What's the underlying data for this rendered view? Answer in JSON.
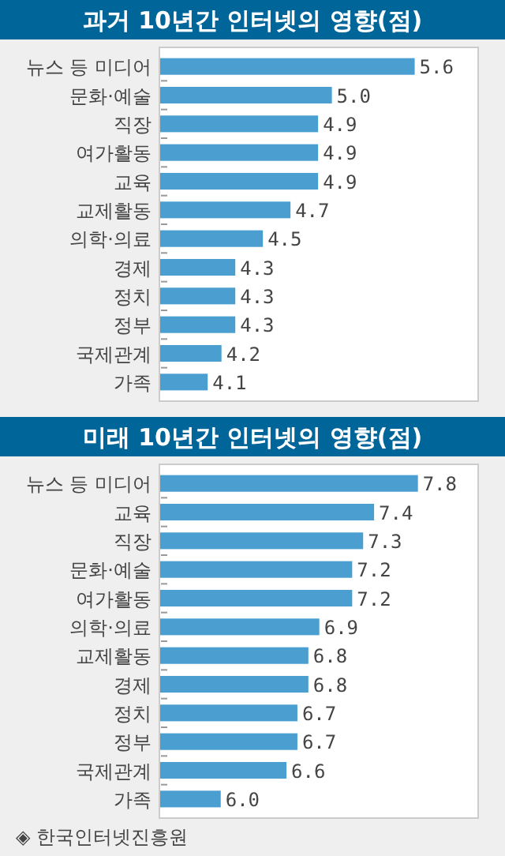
{
  "chart_data": [
    {
      "type": "bar",
      "orientation": "horizontal",
      "title": "과거 10년간 인터넷의 영향(점)",
      "categories": [
        "뉴스 등 미디어",
        "문화·예술",
        "직장",
        "여가활동",
        "교육",
        "교제활동",
        "의학·의료",
        "경제",
        "정치",
        "정부",
        "국제관계",
        "가족"
      ],
      "values": [
        5.6,
        5.0,
        4.9,
        4.9,
        4.9,
        4.7,
        4.5,
        4.3,
        4.3,
        4.3,
        4.2,
        4.1
      ],
      "color": "#4a9fd0",
      "xlim": [
        3.75,
        6.06
      ],
      "value_labels": [
        "5.6",
        "5.0",
        "4.9",
        "4.9",
        "4.9",
        "4.7",
        "4.5",
        "4.3",
        "4.3",
        "4.3",
        "4.2",
        "4.1"
      ],
      "tick_labels": "y"
    },
    {
      "type": "bar",
      "orientation": "horizontal",
      "title": "미래 10년간 인터넷의 영향(점)",
      "categories": [
        "뉴스 등 미디어",
        "교육",
        "직장",
        "문화·예술",
        "여가활동",
        "의학·의료",
        "교제활동",
        "경제",
        "정치",
        "정부",
        "국제관계",
        "가족"
      ],
      "values": [
        7.8,
        7.4,
        7.3,
        7.2,
        7.2,
        6.9,
        6.8,
        6.8,
        6.7,
        6.7,
        6.6,
        6.0
      ],
      "color": "#4a9fd0",
      "xlim": [
        5.44,
        8.35
      ],
      "value_labels": [
        "7.8",
        "7.4",
        "7.3",
        "7.2",
        "7.2",
        "6.9",
        "6.8",
        "6.8",
        "6.7",
        "6.7",
        "6.6",
        "6.0"
      ],
      "tick_labels": "y",
      "annotations": [
        "◈ 한국인터넷진흥원"
      ]
    }
  ]
}
